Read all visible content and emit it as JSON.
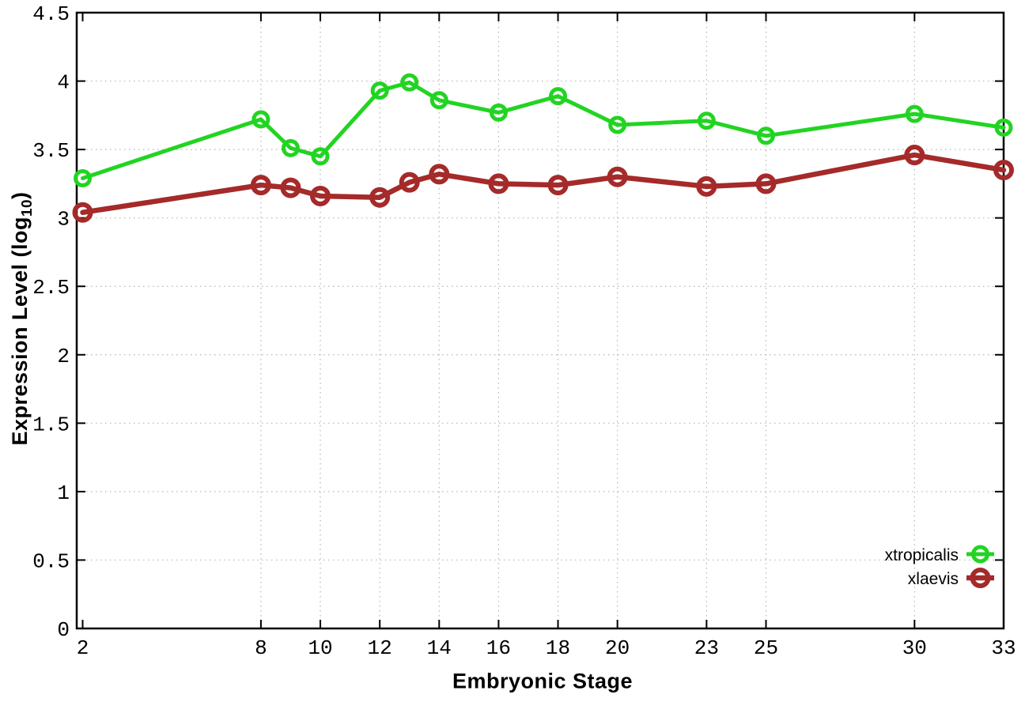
{
  "chart_data": {
    "type": "line",
    "title": "",
    "xlabel": "Embryonic Stage",
    "ylabel": "Expression Level (log10)",
    "ylabel_parts": {
      "main": "Expression Level (log",
      "sub": "10",
      "end": ")"
    },
    "x": [
      2,
      8,
      9,
      10,
      12,
      13,
      14,
      16,
      18,
      20,
      23,
      25,
      30,
      33
    ],
    "series": [
      {
        "name": "xtropicalis",
        "color": "#22d422",
        "marker": "open-circle",
        "values": [
          3.29,
          3.72,
          3.51,
          3.45,
          3.93,
          3.99,
          3.86,
          3.77,
          3.89,
          3.68,
          3.71,
          3.6,
          3.76,
          3.66
        ]
      },
      {
        "name": "xlaevis",
        "color": "#a52a2a",
        "marker": "open-circle",
        "values": [
          3.04,
          3.24,
          3.22,
          3.16,
          3.15,
          3.26,
          3.32,
          3.25,
          3.24,
          3.3,
          3.23,
          3.25,
          3.46,
          3.35
        ]
      }
    ],
    "xticks": [
      2,
      8,
      10,
      12,
      14,
      16,
      18,
      20,
      23,
      25,
      30,
      33
    ],
    "x_tick_labels": [
      "2",
      "8",
      "10",
      "12",
      "14",
      "16",
      "18",
      "20",
      "23",
      "25",
      "30",
      "33"
    ],
    "yticks": [
      0,
      0.5,
      1,
      1.5,
      2,
      2.5,
      3,
      3.5,
      4,
      4.5
    ],
    "y_tick_labels": [
      "0",
      "0.5",
      "1",
      "1.5",
      "2",
      "2.5",
      "3",
      "3.5",
      "4",
      "4.5"
    ],
    "xlim": [
      1.8,
      33
    ],
    "ylim": [
      0,
      4.5
    ],
    "grid": true,
    "grid_color": "#b5b5b5",
    "axis_color": "#000000",
    "legend_position": "bottom-right-inside"
  }
}
